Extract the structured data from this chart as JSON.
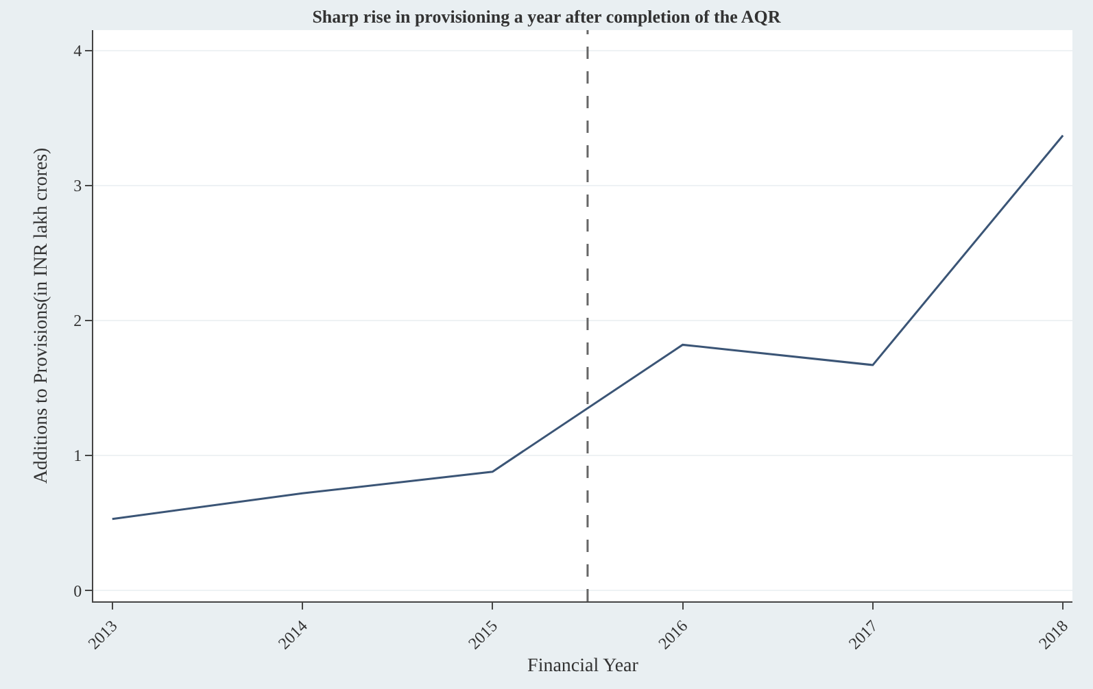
{
  "chart_data": {
    "type": "line",
    "title": "Sharp rise in provisioning a year after completion of the AQR",
    "xlabel": "Financial Year",
    "ylabel": "Additions to Provisions(in INR lakh crores)",
    "x": [
      2013,
      2014,
      2015,
      2016,
      2017,
      2018
    ],
    "series": [
      {
        "color": "#3b5576",
        "values": [
          0.53,
          0.72,
          0.88,
          1.82,
          1.67,
          3.37
        ]
      }
    ],
    "xlim": [
      2012.9,
      2018.05
    ],
    "xticks": [
      2013,
      2014,
      2015,
      2016,
      2017,
      2018
    ],
    "ylim": [
      -0.08,
      4.15
    ],
    "yticks": [
      0,
      1,
      2,
      3,
      4
    ],
    "grid": "y",
    "marker": "none",
    "line_style": "solid",
    "ref_lines": [
      {
        "axis": "x",
        "value": 2015.5,
        "color": "#666666",
        "line_style": "dashed"
      }
    ]
  }
}
